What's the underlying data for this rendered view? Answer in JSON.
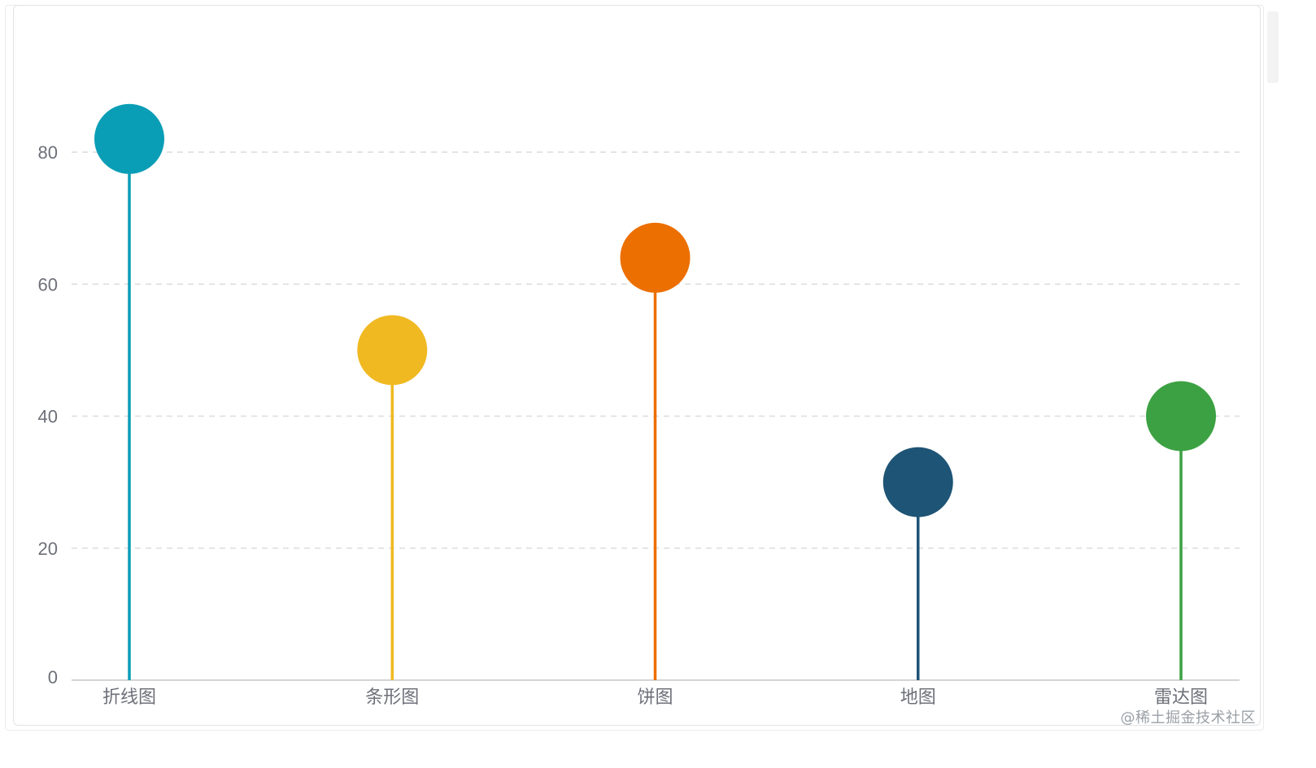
{
  "chart_data": {
    "type": "lollipop",
    "title": "",
    "xlabel": "",
    "ylabel": "",
    "categories": [
      "折线图",
      "条形图",
      "饼图",
      "地图",
      "雷达图"
    ],
    "values": [
      82,
      50,
      64,
      30,
      40
    ],
    "colors": [
      "#0a9eb6",
      "#f0b922",
      "#ec6f02",
      "#1e5475",
      "#3ca142"
    ],
    "ylim": [
      0,
      80
    ],
    "yticks": [
      0,
      20,
      40,
      60,
      80
    ],
    "grid": "horizontal-dashed",
    "legend": "none"
  },
  "watermark": {
    "text": "@稀土掘金技术社区"
  }
}
